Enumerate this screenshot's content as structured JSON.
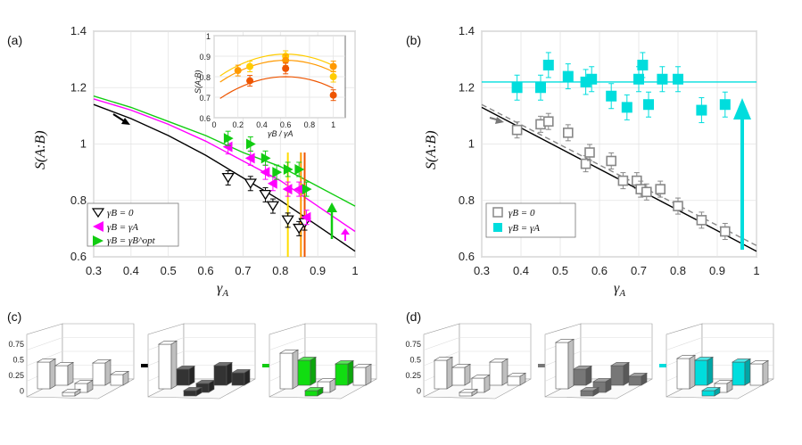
{
  "chart_data": [
    {
      "panel": "(a)",
      "type": "scatter",
      "xlabel": "γA",
      "ylabel": "S(A:B)",
      "xlim": [
        0.3,
        1.0
      ],
      "ylim": [
        0.6,
        1.4
      ],
      "xticks": [
        "0.3",
        "0.4",
        "0.5",
        "0.6",
        "0.7",
        "0.8",
        "0.9",
        "1"
      ],
      "yticks": [
        "0.6",
        "0.8",
        "1",
        "1.2",
        "1.4"
      ],
      "grid": true,
      "legend_position": "bottom-left",
      "legend": [
        "γB = 0",
        "γB = γA",
        "γB = γB^opt"
      ],
      "series": [
        {
          "name": "γB = 0",
          "color": "#000000",
          "marker": "triangle-down-open",
          "points": [
            [
              0.66,
              0.88
            ],
            [
              0.72,
              0.86
            ],
            [
              0.76,
              0.82
            ],
            [
              0.78,
              0.78
            ],
            [
              0.82,
              0.73
            ],
            [
              0.85,
              0.7
            ],
            [
              0.865,
              0.72
            ]
          ]
        },
        {
          "name": "γB = γA",
          "color": "#ff00ff",
          "marker": "triangle-left",
          "points": [
            [
              0.66,
              0.99
            ],
            [
              0.72,
              0.95
            ],
            [
              0.76,
              0.9
            ],
            [
              0.78,
              0.86
            ],
            [
              0.82,
              0.84
            ],
            [
              0.85,
              0.84
            ],
            [
              0.87,
              0.74
            ]
          ]
        },
        {
          "name": "γB = γB^opt",
          "color": "#11cc11",
          "marker": "triangle-right",
          "points": [
            [
              0.66,
              1.02
            ],
            [
              0.72,
              1.0
            ],
            [
              0.76,
              0.95
            ],
            [
              0.79,
              0.9
            ],
            [
              0.82,
              0.91
            ],
            [
              0.85,
              0.91
            ],
            [
              0.87,
              0.84
            ]
          ]
        }
      ],
      "theory_curves": [
        {
          "name": "γB = 0",
          "color": "#000000",
          "x": [
            0.3,
            0.4,
            0.5,
            0.6,
            0.7,
            0.8,
            0.9,
            1.0
          ],
          "y": [
            1.14,
            1.09,
            1.03,
            0.96,
            0.88,
            0.8,
            0.71,
            0.62
          ]
        },
        {
          "name": "γB = γA",
          "color": "#ff00ff",
          "x": [
            0.3,
            0.4,
            0.5,
            0.6,
            0.7,
            0.8,
            0.9,
            1.0
          ],
          "y": [
            1.16,
            1.12,
            1.07,
            1.01,
            0.94,
            0.87,
            0.78,
            0.69
          ]
        },
        {
          "name": "γB = γB^opt",
          "color": "#11cc11",
          "x": [
            0.3,
            0.4,
            0.5,
            0.6,
            0.7,
            0.8,
            0.9,
            1.0
          ],
          "y": [
            1.17,
            1.13,
            1.08,
            1.03,
            0.97,
            0.92,
            0.85,
            0.78
          ]
        }
      ],
      "vertical_lines": [
        {
          "x": 0.82,
          "color": "#ffdd00"
        },
        {
          "x": 0.855,
          "color": "#ff9900"
        },
        {
          "x": 0.865,
          "color": "#ee5500"
        }
      ],
      "inset": {
        "xlabel": "γB / γA",
        "ylabel": "S(A:B)",
        "xlim": [
          0,
          1.1
        ],
        "ylim": [
          0.6,
          1.0
        ],
        "xticks": [
          "0",
          "0.2",
          "0.4",
          "0.6",
          "0.8",
          "1"
        ],
        "yticks": [
          "0.6",
          "0.7",
          "0.8",
          "0.9",
          "1"
        ],
        "series": [
          {
            "name": "yellow",
            "color": "#ffcc00",
            "points": [
              [
                0.3,
                0.85
              ],
              [
                0.6,
                0.9
              ],
              [
                1.0,
                0.8
              ]
            ]
          },
          {
            "name": "orange",
            "color": "#ff9900",
            "points": [
              [
                0.2,
                0.83
              ],
              [
                0.6,
                0.88
              ],
              [
                1.0,
                0.85
              ]
            ]
          },
          {
            "name": "red-orange",
            "color": "#ee5500",
            "points": [
              [
                0.3,
                0.78
              ],
              [
                0.6,
                0.84
              ],
              [
                1.0,
                0.71
              ]
            ]
          }
        ]
      }
    },
    {
      "panel": "(b)",
      "type": "scatter",
      "xlabel": "γA",
      "ylabel": "S(A:B)",
      "xlim": [
        0.3,
        1.0
      ],
      "ylim": [
        0.6,
        1.4
      ],
      "xticks": [
        "0.3",
        "0.4",
        "0.5",
        "0.6",
        "0.7",
        "0.8",
        "0.9",
        "1"
      ],
      "yticks": [
        "0.6",
        "0.8",
        "1",
        "1.2",
        "1.4"
      ],
      "grid": true,
      "legend_position": "bottom-left",
      "legend": [
        "γB = 0",
        "γB = γA"
      ],
      "series": [
        {
          "name": "γB = 0",
          "color": "#888888",
          "marker": "square-open",
          "points": [
            [
              0.39,
              1.05
            ],
            [
              0.45,
              1.07
            ],
            [
              0.47,
              1.08
            ],
            [
              0.52,
              1.04
            ],
            [
              0.565,
              0.93
            ],
            [
              0.575,
              0.97
            ],
            [
              0.63,
              0.94
            ],
            [
              0.66,
              0.87
            ],
            [
              0.695,
              0.87
            ],
            [
              0.705,
              0.84
            ],
            [
              0.72,
              0.83
            ],
            [
              0.755,
              0.84
            ],
            [
              0.8,
              0.78
            ],
            [
              0.86,
              0.73
            ],
            [
              0.92,
              0.69
            ]
          ]
        },
        {
          "name": "γB = γA",
          "color": "#00dddd",
          "marker": "square",
          "points": [
            [
              0.39,
              1.2
            ],
            [
              0.45,
              1.2
            ],
            [
              0.47,
              1.28
            ],
            [
              0.52,
              1.24
            ],
            [
              0.565,
              1.22
            ],
            [
              0.58,
              1.23
            ],
            [
              0.63,
              1.17
            ],
            [
              0.67,
              1.13
            ],
            [
              0.7,
              1.23
            ],
            [
              0.71,
              1.28
            ],
            [
              0.725,
              1.14
            ],
            [
              0.76,
              1.23
            ],
            [
              0.8,
              1.23
            ],
            [
              0.86,
              1.12
            ],
            [
              0.92,
              1.14
            ]
          ]
        }
      ],
      "reference_lines": [
        {
          "name": "γB = γA theory",
          "color": "#00dddd",
          "style": "solid",
          "x": [
            0.3,
            1.0
          ],
          "y": [
            1.22,
            1.22
          ]
        },
        {
          "name": "γB = 0 theory",
          "color": "#000000",
          "style": "solid",
          "x": [
            0.3,
            1.0
          ],
          "y": [
            1.13,
            0.62
          ]
        },
        {
          "name": "γB = 0 fit",
          "color": "#888888",
          "style": "dashed",
          "x": [
            0.3,
            1.0
          ],
          "y": [
            1.14,
            0.64
          ]
        }
      ]
    }
  ],
  "labels": {
    "panel_a": "(a)",
    "panel_b": "(b)",
    "panel_c": "(c)",
    "panel_d": "(d)",
    "bar_yticks": [
      "0.75",
      "0.5",
      "0.25",
      "0"
    ]
  },
  "bar_panels": {
    "c": {
      "colors": [
        "#ffffff",
        "#333333",
        "#11dd11"
      ],
      "arrow_colors": [
        "#000000",
        "#11cc11"
      ]
    },
    "d": {
      "colors": [
        "#ffffff",
        "#777777",
        "#00dddd"
      ],
      "arrow_colors": [
        "#777777",
        "#00dddd"
      ]
    }
  }
}
